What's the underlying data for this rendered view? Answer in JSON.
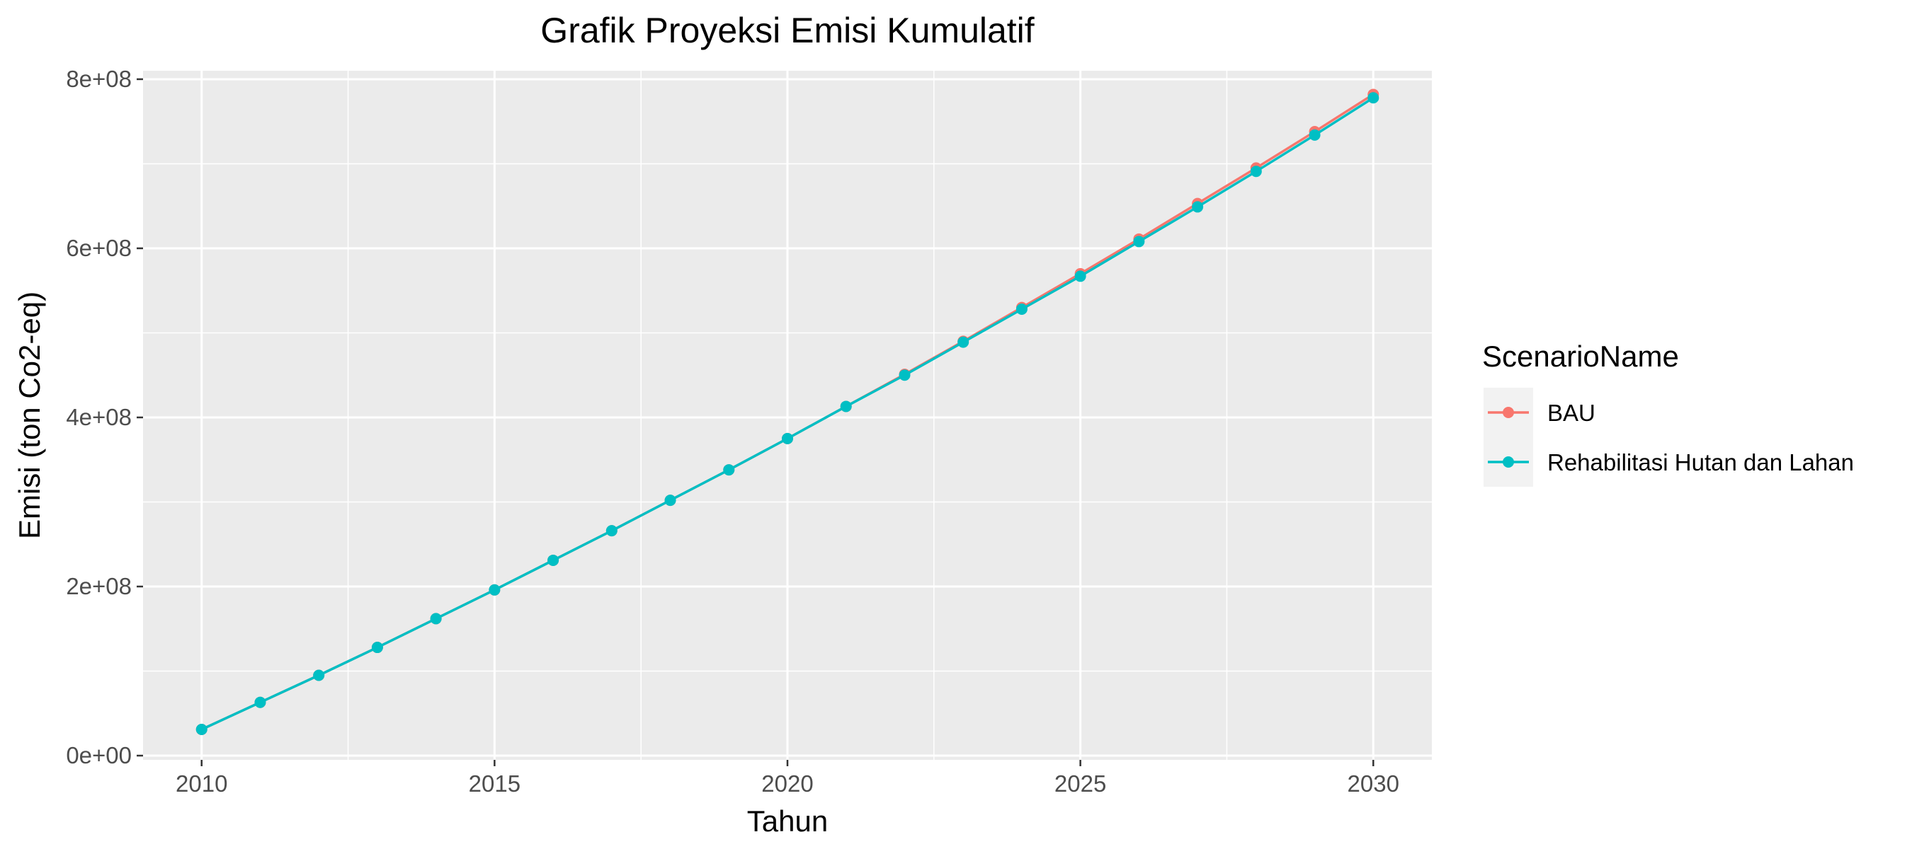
{
  "chart_data": {
    "type": "line",
    "title": "Grafik Proyeksi Emisi Kumulatif",
    "xlabel": "Tahun",
    "ylabel": "Emisi (ton Co2-eq)",
    "xlim": [
      2009,
      2031
    ],
    "ylim": [
      -5000000,
      810000000
    ],
    "x_ticks": [
      2010,
      2015,
      2020,
      2025,
      2030
    ],
    "x_tick_labels": [
      "2010",
      "2015",
      "2020",
      "2025",
      "2030"
    ],
    "y_ticks": [
      0,
      200000000,
      400000000,
      600000000,
      800000000
    ],
    "y_tick_labels": [
      "0e+00",
      "2e+08",
      "4e+08",
      "6e+08",
      "8e+08"
    ],
    "grid": true,
    "legend": {
      "title": "ScenarioName",
      "position": "right"
    },
    "x": [
      2010,
      2011,
      2012,
      2013,
      2014,
      2015,
      2016,
      2017,
      2018,
      2019,
      2020,
      2021,
      2022,
      2023,
      2024,
      2025,
      2026,
      2027,
      2028,
      2029,
      2030
    ],
    "series": [
      {
        "name": "BAU",
        "color": "#F8766D",
        "values": [
          31000000,
          63000000,
          95000000,
          128000000,
          162000000,
          196000000,
          231000000,
          266000000,
          302000000,
          338000000,
          375000000,
          413000000,
          451000000,
          490000000,
          530000000,
          570000000,
          611000000,
          653000000,
          695000000,
          738000000,
          782000000
        ]
      },
      {
        "name": "Rehabilitasi Hutan dan Lahan",
        "color": "#00BFC4",
        "values": [
          31000000,
          63000000,
          95000000,
          128000000,
          162000000,
          196000000,
          231000000,
          266000000,
          302000000,
          338000000,
          375000000,
          413000000,
          450000000,
          489000000,
          528000000,
          567000000,
          608000000,
          649000000,
          691000000,
          734000000,
          778000000
        ]
      }
    ]
  }
}
